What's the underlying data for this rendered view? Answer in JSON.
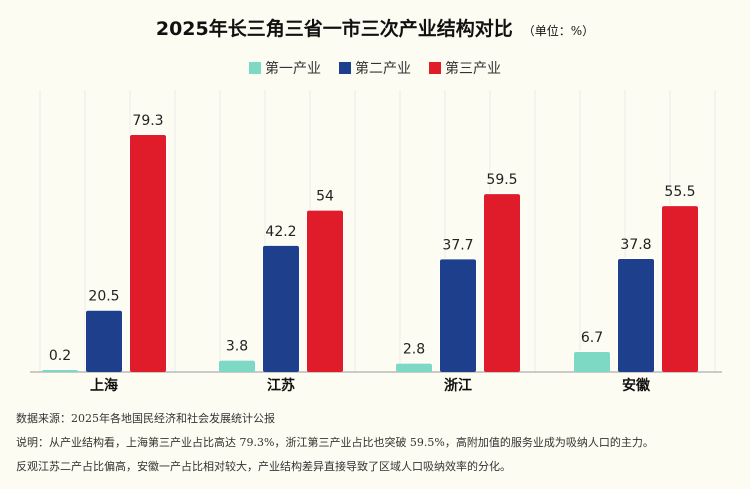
{
  "chart_data": {
    "type": "bar",
    "title": "2025年长三角三省一市三次产业结构对比",
    "unit": "（单位：%）",
    "categories": [
      "上海",
      "江苏",
      "浙江",
      "安徽"
    ],
    "series": [
      {
        "name": "第一产业",
        "color": "#7dd8c4",
        "values": [
          0.2,
          3.8,
          2.8,
          6.7
        ]
      },
      {
        "name": "第二产业",
        "color": "#1e3f8c",
        "values": [
          20.5,
          42.2,
          37.7,
          37.8
        ]
      },
      {
        "name": "第三产业",
        "color": "#e01b2a",
        "values": [
          79.3,
          54,
          59.5,
          55.5
        ]
      }
    ],
    "ylim": [
      0,
      80
    ],
    "legend": "top-center"
  },
  "notes": {
    "source": "数据来源：2025年各地国民经济和社会发展统计公报",
    "line1": "说明：从产业结构看，上海第三产业占比高达 79.3%，浙江第三产业占比也突破 59.5%，高附加值的服务业成为吸纳人口的主力。",
    "line2": "反观江苏二产占比偏高，安徽一产占比相对较大，产业结构差异直接导致了区域人口吸纳效率的分化。"
  }
}
